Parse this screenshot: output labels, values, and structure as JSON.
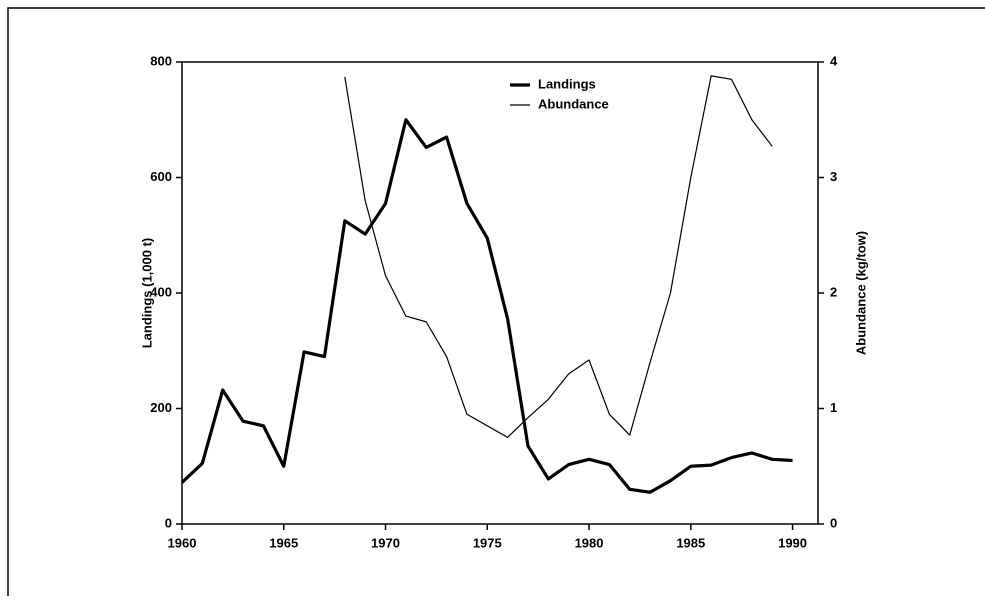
{
  "chart_data": {
    "type": "line",
    "ylabel": "Landings (1,000 t)",
    "y2label": "Abundance (kg/tow)",
    "x": [
      1960,
      1961,
      1962,
      1963,
      1964,
      1965,
      1966,
      1967,
      1968,
      1969,
      1970,
      1971,
      1972,
      1973,
      1974,
      1975,
      1976,
      1977,
      1978,
      1979,
      1980,
      1981,
      1982,
      1983,
      1984,
      1985,
      1986,
      1987,
      1988,
      1989,
      1990
    ],
    "series": [
      {
        "name": "Landings",
        "color": "#000000",
        "width": 3.2,
        "values": [
          72,
          105,
          232,
          178,
          170,
          100,
          298,
          290,
          525,
          502,
          555,
          700,
          652,
          670,
          555,
          495,
          355,
          135,
          78,
          103,
          112,
          103,
          60,
          55,
          75,
          100,
          102,
          115,
          123,
          112,
          110
        ]
      },
      {
        "name": "Abundance",
        "color": "#000000",
        "width": 1.2,
        "axis": "y2",
        "values": [
          null,
          null,
          null,
          null,
          null,
          null,
          null,
          null,
          3.87,
          2.8,
          2.15,
          1.8,
          1.75,
          1.45,
          0.95,
          0.85,
          0.75,
          0.92,
          1.08,
          1.3,
          1.42,
          0.95,
          0.77,
          1.4,
          2.0,
          3.0,
          3.88,
          3.85,
          3.5,
          3.27,
          null
        ]
      }
    ],
    "xlim": [
      1960,
      1991.25
    ],
    "xticks": [
      1960,
      1965,
      1970,
      1975,
      1980,
      1985,
      1990
    ],
    "ylim": [
      0,
      800
    ],
    "yticks": [
      0,
      200,
      400,
      600,
      800
    ],
    "y2lim": [
      0,
      4
    ],
    "y2ticks": [
      0,
      1,
      2,
      3,
      4
    ],
    "legend": "top"
  }
}
